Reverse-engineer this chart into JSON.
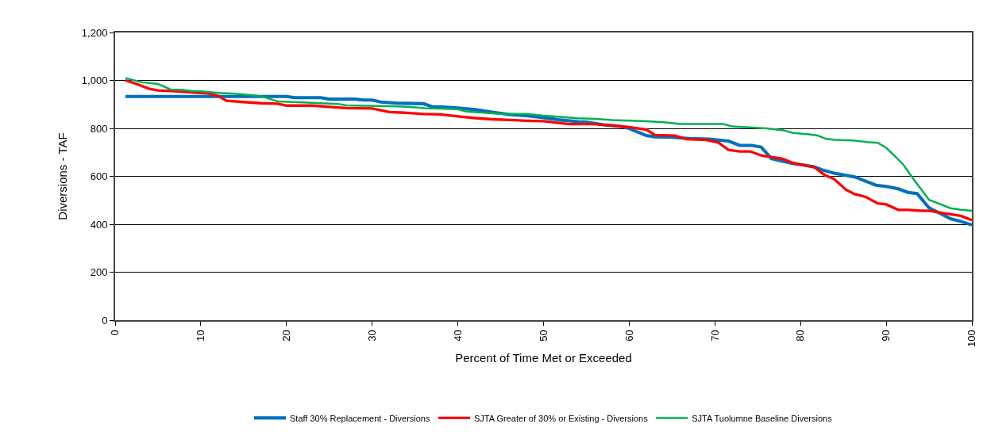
{
  "chart_data": {
    "type": "line",
    "xlabel": "Percent of Time Met or Exceeded",
    "ylabel": "Diversions - TAF",
    "xlim": [
      0,
      100
    ],
    "xticks": [
      0,
      10,
      20,
      30,
      40,
      50,
      60,
      70,
      80,
      90,
      100
    ],
    "ylim": [
      0,
      1200
    ],
    "yticks": [
      0,
      200,
      400,
      600,
      800,
      {
        "value": 1000,
        "label": "1,000"
      },
      {
        "value": 1200,
        "label": "1,200"
      }
    ],
    "grid": "y",
    "legend": "bottom",
    "marker": "none",
    "line_style": "solid",
    "series": [
      {
        "name": "Staff 30% Replacement - Diversions",
        "color": "#0070c0",
        "x": [
          1.2,
          18,
          20,
          21,
          24,
          25,
          28,
          29,
          30,
          31,
          33,
          36,
          37,
          38,
          40,
          42,
          44,
          46,
          48,
          50,
          52,
          54,
          55,
          57,
          59,
          60,
          61,
          62,
          63,
          65,
          67,
          69.3,
          71.6,
          72.9,
          74.3,
          75.4,
          76.6,
          78,
          79.2,
          80.5,
          81.6,
          82.6,
          83.9,
          86.3,
          88.8,
          90,
          91.4,
          92.5,
          93.6,
          95,
          96.2,
          97.5,
          98.7,
          100
        ],
        "values": [
          933,
          933,
          933,
          928,
          928,
          922,
          922,
          918,
          918,
          910,
          905,
          903,
          890,
          890,
          885,
          878,
          868,
          858,
          853,
          845,
          835,
          828,
          826,
          815,
          808,
          800,
          785,
          770,
          765,
          763,
          758,
          755,
          747,
          729,
          729,
          722,
          674,
          662,
          653,
          646,
          640,
          626,
          613,
          598,
          563,
          558,
          548,
          533,
          528,
          468,
          447,
          423,
          412,
          397
        ]
      },
      {
        "name": "SJTA Greater of 30% or Existing - Diversions",
        "color": "#ff0000",
        "x": [
          1.2,
          2.5,
          4,
          5,
          7,
          9,
          11,
          12,
          13,
          15,
          17,
          19,
          20,
          23,
          25,
          27,
          30,
          32,
          34,
          36,
          38,
          40,
          42,
          44,
          46,
          48,
          50,
          52,
          53,
          56,
          58,
          60,
          62,
          63,
          65.3,
          66.7,
          69,
          70.4,
          71.6,
          72.9,
          74.1,
          75.5,
          77.8,
          79.1,
          81.6,
          82.8,
          83.9,
          85.3,
          86.3,
          87.6,
          89,
          90,
          91.4,
          92.5,
          93.8,
          95.1,
          97.5,
          98.7,
          100
        ],
        "values": [
          1000,
          985,
          965,
          958,
          955,
          950,
          945,
          935,
          915,
          910,
          905,
          903,
          895,
          895,
          890,
          885,
          883,
          868,
          865,
          860,
          858,
          850,
          843,
          838,
          835,
          832,
          830,
          822,
          818,
          818,
          812,
          805,
          795,
          772,
          770,
          755,
          752,
          741,
          710,
          704,
          704,
          686,
          674,
          656,
          638,
          606,
          589,
          544,
          526,
          514,
          487,
          483,
          460,
          460,
          457,
          456,
          442,
          435,
          417
        ]
      },
      {
        "name": "SJTA Tuolumne Baseline Diversions",
        "color": "#00b050",
        "x": [
          1.2,
          3,
          5,
          6.5,
          8,
          9,
          10,
          12,
          14,
          17,
          19,
          22,
          26,
          27,
          33,
          35,
          36,
          40,
          41,
          43,
          45,
          48,
          50,
          52,
          54,
          56,
          58,
          62,
          64,
          66,
          71,
          72,
          74,
          76,
          78,
          79,
          81,
          82,
          83,
          84,
          86,
          88,
          89,
          90,
          91,
          92,
          93.4,
          95,
          97.5,
          98.7,
          100
        ],
        "values": [
          1010,
          993,
          985,
          962,
          960,
          955,
          955,
          948,
          945,
          935,
          912,
          908,
          902,
          896,
          892,
          888,
          884,
          880,
          870,
          865,
          860,
          860,
          853,
          848,
          842,
          840,
          835,
          830,
          826,
          818,
          818,
          808,
          804,
          800,
          792,
          782,
          775,
          770,
          756,
          752,
          750,
          742,
          740,
          719,
          685,
          648,
          578,
          502,
          467,
          460,
          456
        ]
      }
    ]
  }
}
